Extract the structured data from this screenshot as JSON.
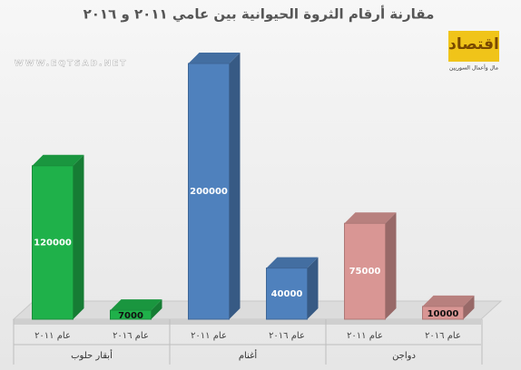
{
  "chart_data": {
    "type": "bar3d",
    "title": "مقارنة أرقام الثروة الحيوانية بين عامي ٢٠١١ و ٢٠١٦",
    "watermark": "WWW.EQTSAD.NET",
    "logo": {
      "title": "اقتصاد",
      "subtitle": "مال وأعمال السوريين"
    },
    "groups": [
      "أبقار حلوب",
      "أغنام",
      "دواجن"
    ],
    "categories": [
      "عام ٢٠١١",
      "عام ٢٠١٦",
      "عام ٢٠١١",
      "عام ٢٠١٦",
      "عام ٢٠١١",
      "عام ٢٠١٦"
    ],
    "values": [
      120000,
      7000,
      200000,
      40000,
      75000,
      10000
    ],
    "colors": [
      "#1fb14a",
      "#1fb14a",
      "#4f81bd",
      "#4f81bd",
      "#d99694",
      "#d99694"
    ]
  }
}
